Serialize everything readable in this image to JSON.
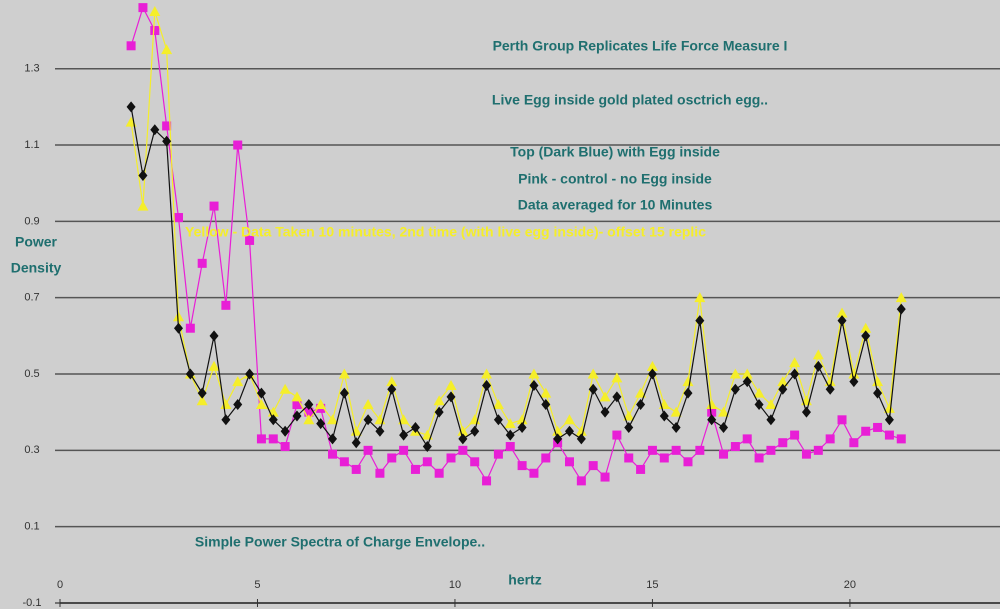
{
  "chart_data": {
    "type": "scatter",
    "annotations": [
      "Perth Group Replicates Life Force Measure I",
      "Live Egg inside gold plated osctrich egg..",
      "Top (Dark Blue) with Egg inside",
      "Pink - control - no Egg inside",
      "Data averaged for 10 Minutes",
      "Yellow - Data Taken 10 minutes, 2nd time (with live egg inside)- offset 15 replic",
      "Simple Power Spectra of Charge Envelope.."
    ],
    "ylabel": [
      "Power",
      "Density"
    ],
    "xlabel": "hertz",
    "xlim": [
      0,
      23.8
    ],
    "xticks": [
      0,
      5,
      10,
      15,
      20
    ],
    "ylim": [
      -0.1,
      1.48
    ],
    "yticks": [
      1.3,
      1.1,
      0.9,
      0.7,
      0.5,
      0.3,
      0.1,
      -0.1
    ],
    "grid": true,
    "x": [
      1.8,
      2.1,
      2.4,
      2.7,
      3.0,
      3.3,
      3.6,
      3.9,
      4.2,
      4.5,
      4.8,
      5.1,
      5.4,
      5.7,
      6.0,
      6.3,
      6.6,
      6.9,
      7.2,
      7.5,
      7.8,
      8.1,
      8.4,
      8.7,
      9.0,
      9.3,
      9.6,
      9.9,
      10.2,
      10.5,
      10.8,
      11.1,
      11.4,
      11.7,
      12.0,
      12.3,
      12.6,
      12.9,
      13.2,
      13.5,
      13.8,
      14.1,
      14.4,
      14.7,
      15.0,
      15.3,
      15.6,
      15.9,
      16.2,
      16.5,
      16.8,
      17.1,
      17.4,
      17.7,
      18.0,
      18.3,
      18.6,
      18.9,
      19.2,
      19.5,
      19.8,
      20.1,
      20.4,
      20.7,
      21.0,
      21.3
    ],
    "series": [
      {
        "color": "#e81fd6",
        "marker": "square",
        "values": [
          1.36,
          1.46,
          1.4,
          1.15,
          0.91,
          0.62,
          0.79,
          0.94,
          0.68,
          1.1,
          0.85,
          0.33,
          0.33,
          0.31,
          0.42,
          0.4,
          0.41,
          0.29,
          0.27,
          0.25,
          0.3,
          0.24,
          0.28,
          0.3,
          0.25,
          0.27,
          0.24,
          0.28,
          0.3,
          0.27,
          0.22,
          0.29,
          0.31,
          0.26,
          0.24,
          0.28,
          0.32,
          0.27,
          0.22,
          0.26,
          0.23,
          0.34,
          0.28,
          0.25,
          0.3,
          0.28,
          0.3,
          0.27,
          0.3,
          0.4,
          0.29,
          0.31,
          0.33,
          0.28,
          0.3,
          0.32,
          0.34,
          0.29,
          0.3,
          0.33,
          0.38,
          0.32,
          0.35,
          0.36,
          0.34,
          0.33
        ]
      },
      {
        "color": "#f5ee2a",
        "marker": "triangle",
        "values": [
          1.16,
          0.94,
          1.45,
          1.35,
          0.65,
          0.5,
          0.43,
          0.52,
          0.42,
          0.48,
          0.5,
          0.42,
          0.4,
          0.46,
          0.44,
          0.38,
          0.42,
          0.38,
          0.5,
          0.35,
          0.42,
          0.38,
          0.48,
          0.38,
          0.35,
          0.34,
          0.43,
          0.47,
          0.35,
          0.38,
          0.5,
          0.42,
          0.37,
          0.38,
          0.5,
          0.45,
          0.35,
          0.38,
          0.35,
          0.5,
          0.44,
          0.49,
          0.39,
          0.45,
          0.52,
          0.42,
          0.4,
          0.48,
          0.7,
          0.42,
          0.4,
          0.5,
          0.5,
          0.45,
          0.42,
          0.48,
          0.53,
          0.43,
          0.55,
          0.48,
          0.66,
          0.5,
          0.62,
          0.48,
          0.41,
          0.7
        ]
      },
      {
        "color": "#111111",
        "marker": "diamond",
        "values": [
          1.2,
          1.02,
          1.14,
          1.11,
          0.62,
          0.5,
          0.45,
          0.6,
          0.38,
          0.42,
          0.5,
          0.45,
          0.38,
          0.35,
          0.39,
          0.42,
          0.37,
          0.33,
          0.45,
          0.32,
          0.38,
          0.35,
          0.46,
          0.34,
          0.36,
          0.31,
          0.4,
          0.44,
          0.33,
          0.35,
          0.47,
          0.38,
          0.34,
          0.36,
          0.47,
          0.42,
          0.33,
          0.35,
          0.33,
          0.46,
          0.4,
          0.44,
          0.36,
          0.42,
          0.5,
          0.39,
          0.36,
          0.45,
          0.64,
          0.38,
          0.36,
          0.46,
          0.48,
          0.42,
          0.38,
          0.46,
          0.5,
          0.4,
          0.52,
          0.46,
          0.64,
          0.48,
          0.6,
          0.45,
          0.38,
          0.67
        ]
      }
    ]
  }
}
